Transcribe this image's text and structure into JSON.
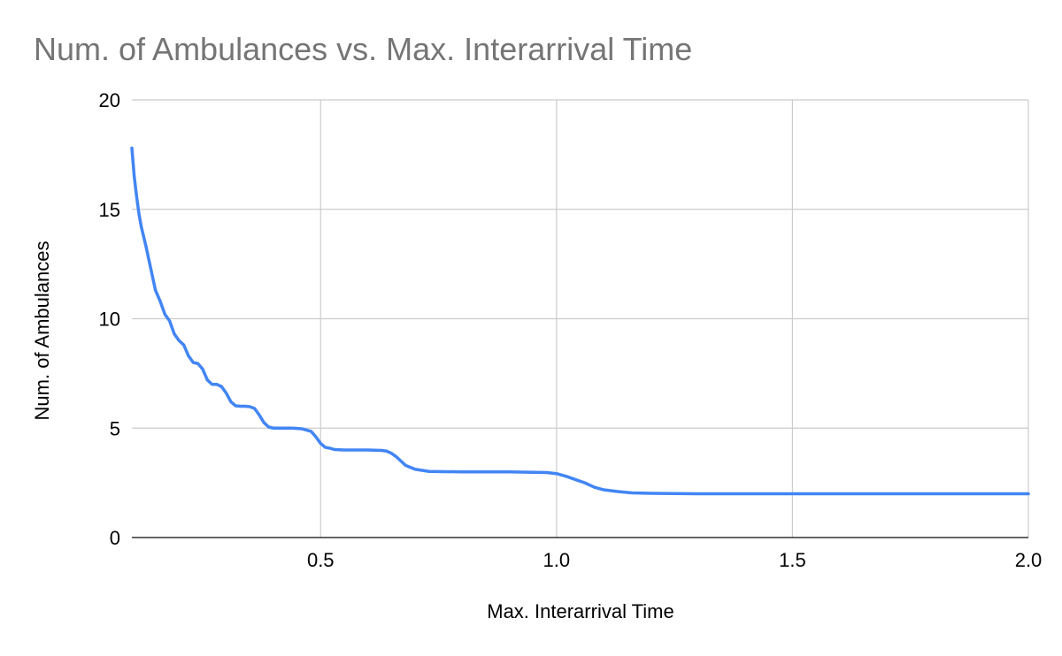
{
  "chart_data": {
    "type": "line",
    "title": "Num. of Ambulances vs. Max. Interarrival Time",
    "xlabel": "Max. Interarrival Time",
    "ylabel": "Num. of Ambulances",
    "xlim": [
      0.1,
      2.0
    ],
    "ylim": [
      0,
      20
    ],
    "x_ticks": [
      "0.5",
      "1.0",
      "1.5",
      "2.0"
    ],
    "y_ticks": [
      "0",
      "5",
      "10",
      "15",
      "20"
    ],
    "grid": true,
    "legend": "none",
    "series": [
      {
        "color": "#4285f4",
        "x": [
          0.1,
          0.105,
          0.11,
          0.115,
          0.12,
          0.13,
          0.14,
          0.15,
          0.16,
          0.17,
          0.18,
          0.19,
          0.2,
          0.21,
          0.22,
          0.23,
          0.24,
          0.25,
          0.26,
          0.27,
          0.28,
          0.29,
          0.3,
          0.31,
          0.32,
          0.33,
          0.34,
          0.35,
          0.36,
          0.37,
          0.38,
          0.39,
          0.4,
          0.41,
          0.42,
          0.44,
          0.46,
          0.48,
          0.49,
          0.5,
          0.51,
          0.52,
          0.53,
          0.55,
          0.6,
          0.63,
          0.64,
          0.65,
          0.66,
          0.67,
          0.68,
          0.7,
          0.73,
          0.8,
          0.9,
          0.98,
          1.0,
          1.02,
          1.04,
          1.06,
          1.08,
          1.1,
          1.13,
          1.16,
          1.2,
          1.3,
          1.4,
          1.5,
          1.6,
          1.7,
          1.8,
          1.9,
          2.0
        ],
        "y": [
          17.8,
          16.5,
          15.6,
          14.8,
          14.2,
          13.3,
          12.3,
          11.3,
          10.8,
          10.2,
          9.9,
          9.3,
          9.0,
          8.8,
          8.3,
          8.0,
          7.95,
          7.7,
          7.2,
          7.0,
          7.0,
          6.9,
          6.6,
          6.2,
          6.02,
          6.0,
          6.0,
          5.98,
          5.9,
          5.6,
          5.25,
          5.05,
          5.0,
          5.0,
          5.0,
          5.0,
          4.97,
          4.85,
          4.6,
          4.3,
          4.12,
          4.08,
          4.02,
          4.0,
          4.0,
          3.98,
          3.95,
          3.85,
          3.7,
          3.5,
          3.3,
          3.12,
          3.02,
          3.0,
          3.0,
          2.97,
          2.92,
          2.8,
          2.65,
          2.5,
          2.3,
          2.18,
          2.1,
          2.04,
          2.02,
          2.0,
          2.0,
          2.0,
          2.0,
          2.0,
          2.0,
          2.0,
          2.0
        ]
      }
    ]
  }
}
